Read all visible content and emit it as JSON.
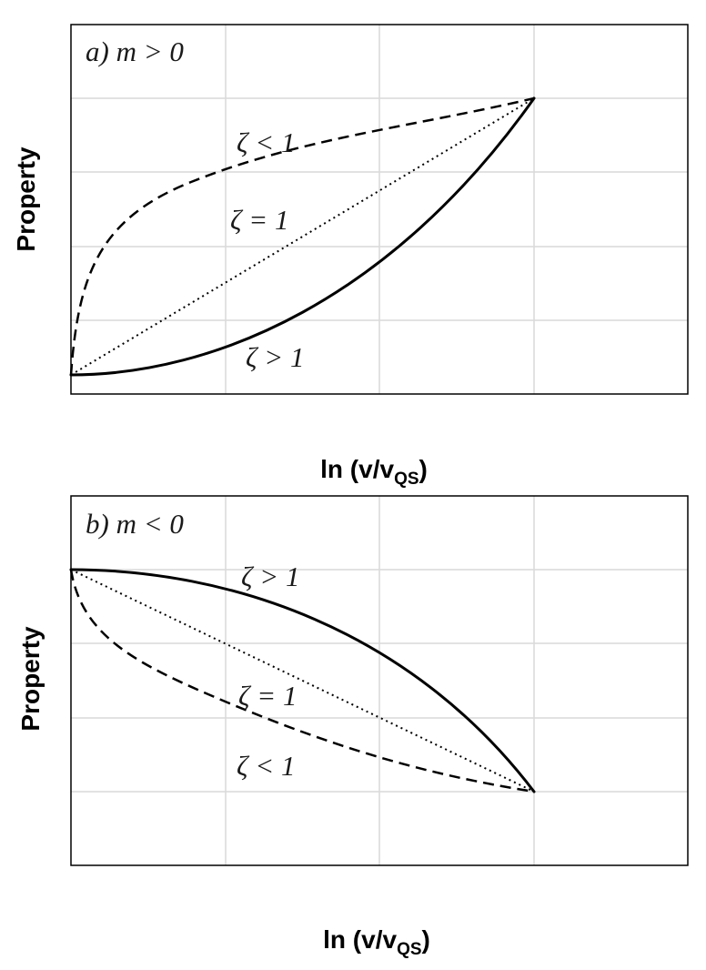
{
  "chart_data": [
    {
      "type": "line",
      "panel_label": "a) m > 0",
      "xlabel": "ln (v/v",
      "xlabel_subscript": "QS",
      "xlabel_suffix": ")",
      "ylabel": "Property",
      "xlim": [
        0,
        4
      ],
      "ylim": [
        0,
        5
      ],
      "grid": true,
      "series": [
        {
          "name": "ζ < 1",
          "style": "dashed",
          "shape": "concave",
          "x": [
            0,
            3
          ],
          "y": [
            0.25,
            4
          ]
        },
        {
          "name": "ζ = 1",
          "style": "dotted",
          "shape": "linear",
          "x": [
            0,
            3
          ],
          "y": [
            0.25,
            4
          ]
        },
        {
          "name": "ζ > 1",
          "style": "solid",
          "shape": "convex",
          "x": [
            0,
            3
          ],
          "y": [
            0.25,
            4
          ]
        }
      ]
    },
    {
      "type": "line",
      "panel_label": "b) m < 0",
      "xlabel": "ln (v/v",
      "xlabel_subscript": "QS",
      "xlabel_suffix": ")",
      "ylabel": "Property",
      "xlim": [
        0,
        4
      ],
      "ylim": [
        0,
        5
      ],
      "grid": true,
      "series": [
        {
          "name": "ζ > 1",
          "style": "solid",
          "shape": "concave",
          "x": [
            0,
            3
          ],
          "y": [
            4,
            1
          ]
        },
        {
          "name": "ζ = 1",
          "style": "dotted",
          "shape": "linear",
          "x": [
            0,
            3
          ],
          "y": [
            4,
            1
          ]
        },
        {
          "name": "ζ < 1",
          "style": "dashed",
          "shape": "convex",
          "x": [
            0,
            3
          ],
          "y": [
            4,
            1
          ]
        }
      ]
    }
  ]
}
